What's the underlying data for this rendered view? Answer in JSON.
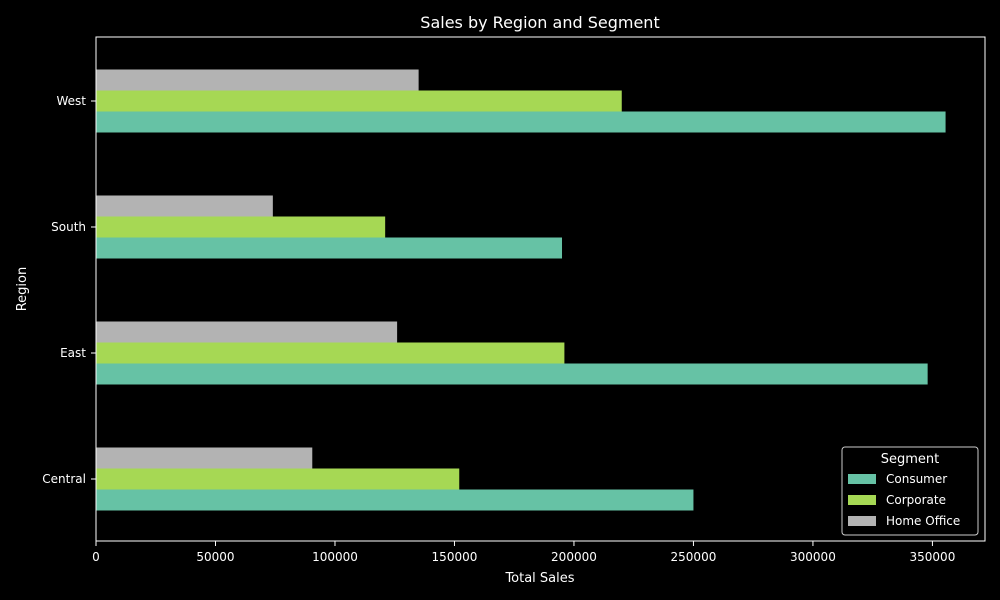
{
  "chart_data": {
    "type": "bar",
    "orientation": "horizontal",
    "title": "Sales by Region and Segment",
    "xlabel": "Total Sales",
    "ylabel": "Region",
    "xlim": [
      0,
      372000
    ],
    "xticks": [
      0,
      50000,
      100000,
      150000,
      200000,
      250000,
      300000,
      350000
    ],
    "categories": [
      "Central",
      "East",
      "South",
      "West"
    ],
    "series": [
      {
        "name": "Consumer",
        "color": "#66c2a5",
        "values": [
          250000,
          348000,
          195000,
          355500
        ]
      },
      {
        "name": "Corporate",
        "color": "#a6d854",
        "values": [
          152000,
          196000,
          121000,
          220000
        ]
      },
      {
        "name": "Home Office",
        "color": "#b3b3b3",
        "values": [
          90500,
          126000,
          74000,
          135000
        ]
      }
    ],
    "legend": {
      "title": "Segment",
      "position": "lower-right"
    },
    "grid": false
  }
}
